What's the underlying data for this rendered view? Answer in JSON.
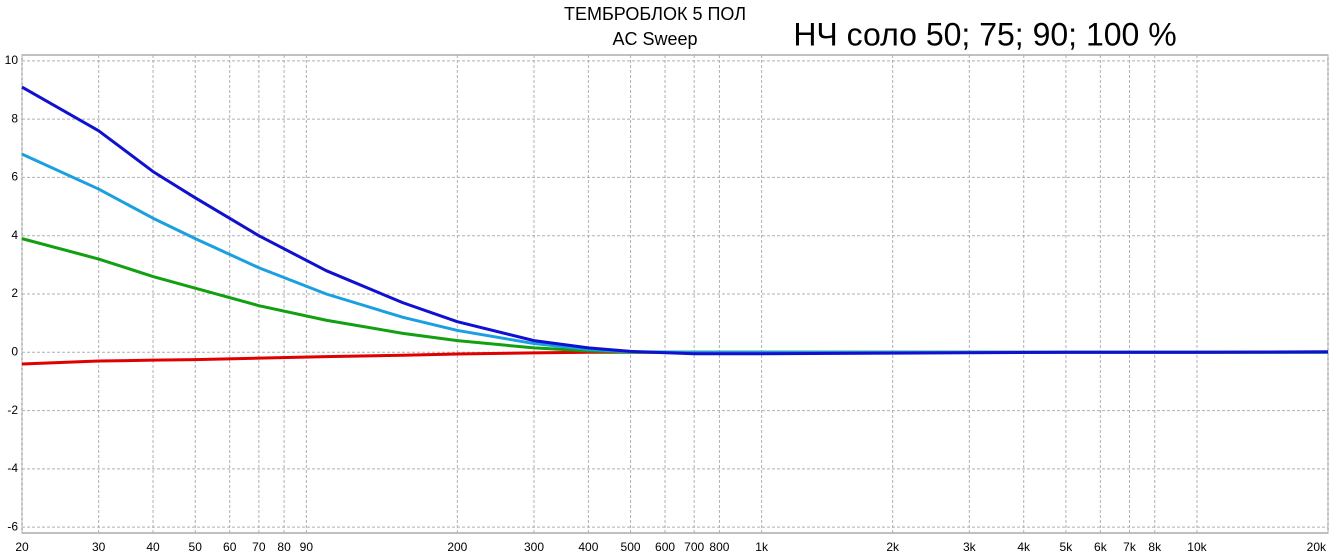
{
  "chart_data": {
    "type": "line",
    "title": "ТЕМБРОБЛОК 5 ПОЛ",
    "subtitle": "AC Sweep",
    "annotation": "НЧ соло 50; 75; 90; 100 %",
    "x": [
      20,
      30,
      40,
      50,
      70,
      100,
      150,
      200,
      300,
      400,
      500,
      700,
      1000,
      2000,
      5000,
      10000,
      20000
    ],
    "series": [
      {
        "color": "#e00000",
        "values": [
          -0.4,
          -0.3,
          -0.27,
          -0.25,
          -0.2,
          -0.15,
          -0.1,
          -0.06,
          -0.02,
          0,
          0,
          0,
          0,
          0,
          0,
          0,
          0
        ]
      },
      {
        "color": "#10a010",
        "values": [
          3.9,
          3.2,
          2.6,
          2.2,
          1.6,
          1.1,
          0.65,
          0.4,
          0.15,
          0.05,
          0,
          0,
          0,
          0,
          0,
          0,
          0
        ]
      },
      {
        "color": "#1aa0e0",
        "values": [
          6.8,
          5.6,
          4.6,
          3.9,
          2.9,
          2.0,
          1.2,
          0.75,
          0.3,
          0.1,
          0.02,
          0,
          0,
          0,
          0,
          0,
          0
        ]
      },
      {
        "color": "#1010d0",
        "values": [
          9.1,
          7.6,
          6.2,
          5.3,
          4.0,
          2.8,
          1.7,
          1.05,
          0.4,
          0.15,
          0.03,
          -0.05,
          -0.05,
          -0.03,
          0,
          0,
          0.02
        ]
      }
    ],
    "xlim": [
      20,
      20000
    ],
    "log_x": true,
    "xticks": [
      20,
      30,
      40,
      50,
      60,
      70,
      80,
      90,
      200,
      300,
      400,
      500,
      600,
      700,
      800,
      {
        "value": 1000,
        "label": "1k"
      },
      {
        "value": 2000,
        "label": "2k"
      },
      {
        "value": 3000,
        "label": "3k"
      },
      {
        "value": 4000,
        "label": "4k"
      },
      {
        "value": 5000,
        "label": "5k"
      },
      {
        "value": 6000,
        "label": "6k"
      },
      {
        "value": 7000,
        "label": "7k"
      },
      {
        "value": 8000,
        "label": "8k"
      },
      {
        "value": 10000,
        "label": "10k"
      },
      {
        "value": 20000,
        "label": "20k"
      }
    ],
    "ylim": [
      -6.2,
      10.2
    ],
    "yticks": [
      10,
      8,
      6,
      4,
      2,
      0,
      -2,
      -4,
      -6
    ],
    "grid": true
  }
}
